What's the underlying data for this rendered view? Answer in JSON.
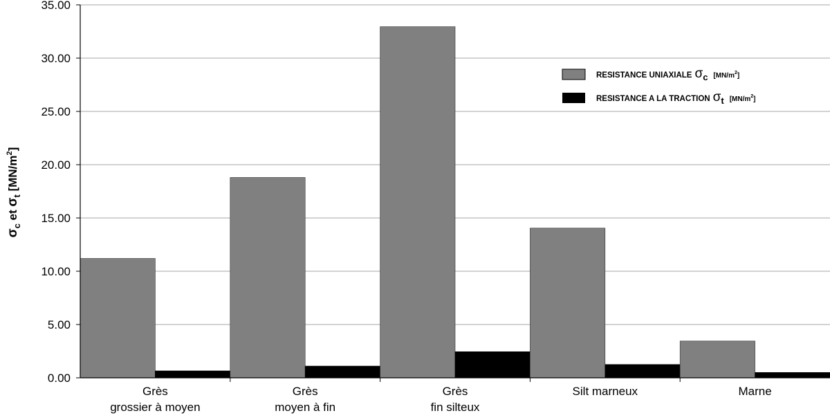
{
  "chart_data": {
    "type": "bar",
    "categories": [
      [
        "Grès",
        "grossier à moyen"
      ],
      [
        "Grès",
        "moyen à fin"
      ],
      [
        "Grès",
        "fin silteux"
      ],
      [
        "Silt marneux"
      ],
      [
        "Marne"
      ]
    ],
    "series": [
      {
        "name": "RESISTANCE UNIAXIALE",
        "symbol": "σ",
        "subscript": "c",
        "unit": "[MN/m",
        "unit_sup": "2",
        "unit_close": "]",
        "color": "#808080",
        "values": [
          11.2,
          18.8,
          32.95,
          14.05,
          3.45
        ]
      },
      {
        "name": "RESISTANCE A LA TRACTION",
        "symbol": "σ",
        "subscript": "t",
        "unit": "[MN/m",
        "unit_sup": "2",
        "unit_close": "]",
        "color": "#000000",
        "values": [
          0.65,
          1.1,
          2.45,
          1.25,
          0.5
        ]
      }
    ],
    "ylim": [
      0,
      35
    ],
    "yticks": [
      "0.00",
      "5.00",
      "10.00",
      "15.00",
      "20.00",
      "25.00",
      "30.00",
      "35.00"
    ],
    "ylabel": {
      "sym1": "σ",
      "sub1": "c",
      "mid": " et ",
      "sym2": "σ",
      "sub2": "t",
      "unit": " [MN/m",
      "unit_sup": "2",
      "unit_close": "]"
    },
    "grid": true,
    "legend_position": "top-right"
  }
}
